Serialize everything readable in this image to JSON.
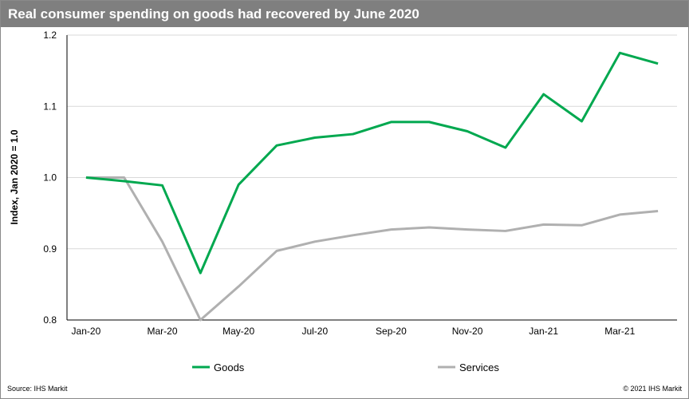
{
  "title": "Real consumer spending on goods had recovered by June 2020",
  "footer": {
    "source": "Source:  IHS Markit",
    "copyright": "© 2021  IHS Markit"
  },
  "chart_data": {
    "type": "line",
    "title": "Real consumer spending on goods had recovered by June 2020",
    "xlabel": "",
    "ylabel": "Index, Jan 2020 = 1.0",
    "ylim": [
      0.8,
      1.2
    ],
    "yticks": [
      "0.8",
      "0.9",
      "1.0",
      "1.1",
      "1.2"
    ],
    "ytick_values": [
      0.8,
      0.9,
      1.0,
      1.1,
      1.2
    ],
    "x": [
      "Jan-20",
      "Feb-20",
      "Mar-20",
      "Apr-20",
      "May-20",
      "Jun-20",
      "Jul-20",
      "Aug-20",
      "Sep-20",
      "Oct-20",
      "Nov-20",
      "Dec-20",
      "Jan-21",
      "Feb-21",
      "Mar-21",
      "Apr-21"
    ],
    "xtick_labels": [
      "Jan-20",
      "Mar-20",
      "May-20",
      "Jul-20",
      "Sep-20",
      "Nov-20",
      "Jan-21",
      "Mar-21"
    ],
    "xtick_index": [
      0,
      2,
      4,
      6,
      8,
      10,
      12,
      14
    ],
    "grid": "horizontal",
    "legend_position": "bottom",
    "series": [
      {
        "name": "Goods",
        "color": "#00a84f",
        "values": [
          1.0,
          0.995,
          0.989,
          0.866,
          0.99,
          1.045,
          1.056,
          1.061,
          1.078,
          1.078,
          1.065,
          1.042,
          1.117,
          1.079,
          1.175,
          1.16
        ]
      },
      {
        "name": "Services",
        "color": "#b0b0b0",
        "values": [
          1.0,
          1.0,
          0.91,
          0.8,
          0.847,
          0.897,
          0.91,
          0.919,
          0.927,
          0.93,
          0.927,
          0.925,
          0.934,
          0.933,
          0.948,
          0.953
        ]
      }
    ]
  }
}
